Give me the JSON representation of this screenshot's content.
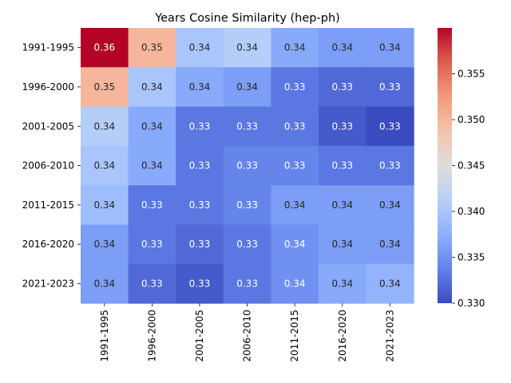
{
  "chart_data": {
    "type": "heatmap",
    "title": "Years Cosine Similarity (hep-ph)",
    "xlabel": "",
    "ylabel": "",
    "rows": [
      "1991-1995",
      "1996-2000",
      "2001-2005",
      "2006-2010",
      "2011-2015",
      "2016-2020",
      "2021-2023"
    ],
    "columns": [
      "1991-1995",
      "1996-2000",
      "2001-2005",
      "2006-2010",
      "2011-2015",
      "2016-2020",
      "2021-2023"
    ],
    "values": [
      [
        0.36,
        0.35,
        0.34,
        0.341,
        0.337,
        0.336,
        0.336
      ],
      [
        0.35,
        0.34,
        0.337,
        0.336,
        0.333,
        0.332,
        0.332
      ],
      [
        0.341,
        0.337,
        0.333,
        0.333,
        0.333,
        0.331,
        0.33
      ],
      [
        0.34,
        0.337,
        0.333,
        0.334,
        0.334,
        0.333,
        0.333
      ],
      [
        0.339,
        0.333,
        0.333,
        0.334,
        0.336,
        0.336,
        0.336
      ],
      [
        0.336,
        0.333,
        0.332,
        0.333,
        0.335,
        0.336,
        0.336
      ],
      [
        0.336,
        0.332,
        0.331,
        0.333,
        0.335,
        0.337,
        0.338
      ]
    ],
    "value_format": "2 decimals",
    "colormap": "coolwarm",
    "vmin": 0.33,
    "vmax": 0.36,
    "colorbar_ticks": [
      "0.330",
      "0.335",
      "0.340",
      "0.345",
      "0.350",
      "0.355"
    ]
  }
}
